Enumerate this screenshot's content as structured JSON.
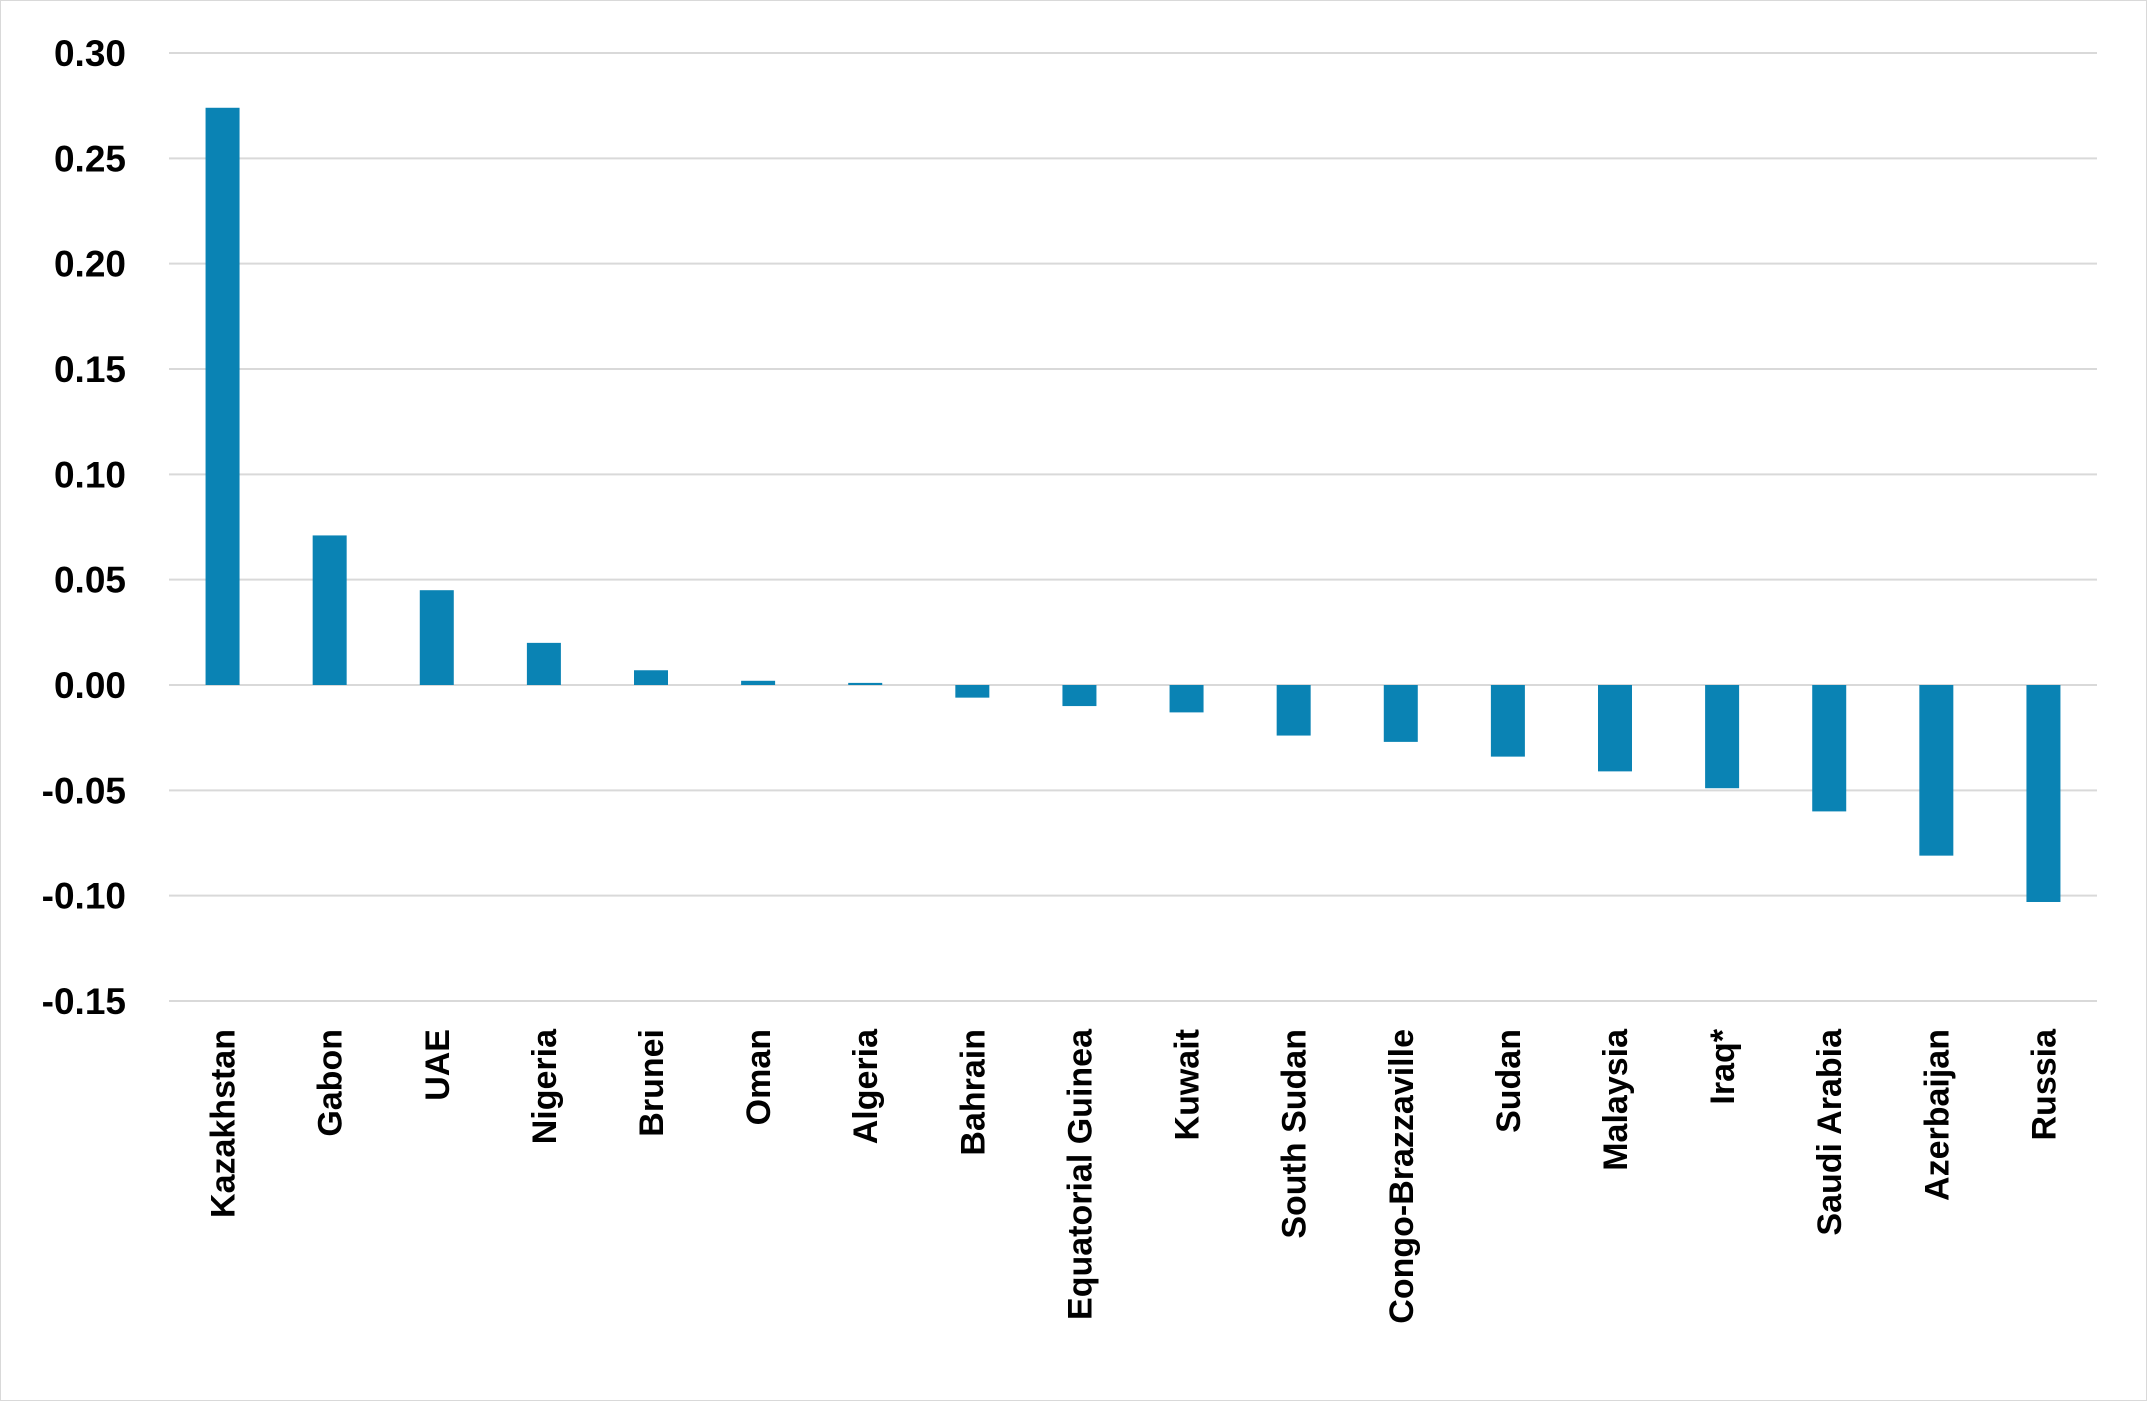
{
  "chart_data": {
    "type": "bar",
    "title": "",
    "xlabel": "",
    "ylabel": "",
    "ylim": [
      -0.15,
      0.3
    ],
    "yticks": [
      0.3,
      0.25,
      0.2,
      0.15,
      0.1,
      0.05,
      0.0,
      -0.05,
      -0.1,
      -0.15
    ],
    "ytick_labels": [
      "0.30",
      "0.25",
      "0.20",
      "0.15",
      "0.10",
      "0.05",
      "0.00",
      "-0.05",
      "-0.10",
      "-0.15"
    ],
    "grid": true,
    "bar_color": "#0a83b4",
    "grid_color": "#d9d9d9",
    "categories": [
      "Kazakhstan",
      "Gabon",
      "UAE",
      "Nigeria",
      "Brunei",
      "Oman",
      "Algeria",
      "Bahrain",
      "Equatorial Guinea",
      "Kuwait",
      "South Sudan",
      "Congo-Brazzaville",
      "Sudan",
      "Malaysia",
      "Iraq*",
      "Saudi Arabia",
      "Azerbaijan",
      "Russia"
    ],
    "values": [
      0.274,
      0.071,
      0.045,
      0.02,
      0.007,
      0.002,
      0.001,
      -0.006,
      -0.01,
      -0.013,
      -0.024,
      -0.027,
      -0.034,
      -0.041,
      -0.049,
      -0.06,
      -0.081,
      -0.103
    ]
  }
}
